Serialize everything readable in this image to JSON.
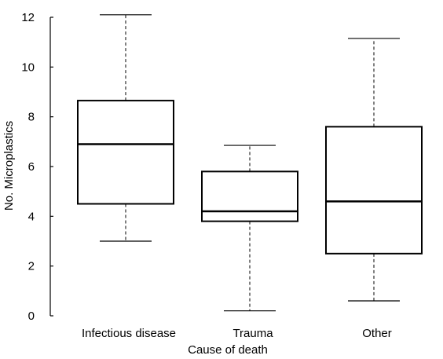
{
  "chart_data": {
    "type": "box",
    "xlabel": "Cause of death",
    "ylabel": "No. Microplastics",
    "ylim": [
      0,
      12
    ],
    "yticks": [
      0,
      2,
      4,
      6,
      8,
      10,
      12
    ],
    "categories": [
      "Infectious disease",
      "Trauma",
      "Other"
    ],
    "boxes": [
      {
        "category": "Infectious disease",
        "min": 3.0,
        "q1": 4.5,
        "median": 6.9,
        "q3": 8.65,
        "max": 12.1
      },
      {
        "category": "Trauma",
        "min": 0.2,
        "q1": 3.8,
        "median": 4.2,
        "q3": 5.8,
        "max": 6.85
      },
      {
        "category": "Other",
        "min": 0.6,
        "q1": 2.5,
        "median": 4.6,
        "q3": 7.6,
        "max": 11.15
      }
    ],
    "whisker_style": "dashed",
    "grid": false,
    "legend": "none"
  }
}
